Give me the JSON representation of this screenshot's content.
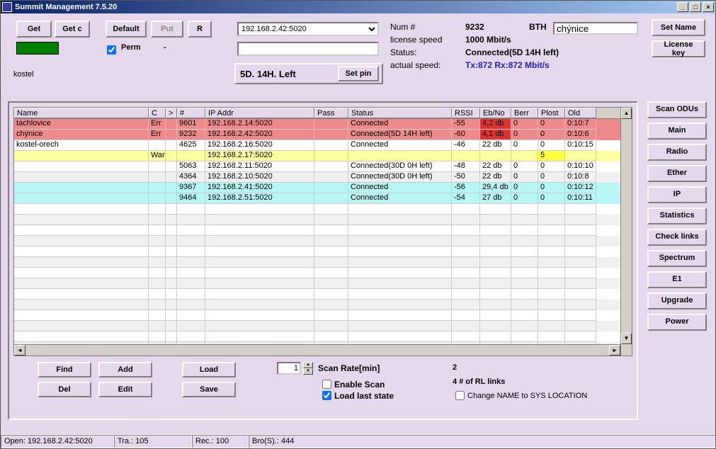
{
  "window": {
    "title": "Summit Management 7.5.20"
  },
  "toolbar": {
    "get": "Get",
    "getc": "Get c",
    "default": "Default",
    "put": "Put",
    "r": "R",
    "swatch_color": "#008000",
    "perm_label": "Perm",
    "perm_checked": true,
    "perm_dash": "-",
    "kostel": "kostel"
  },
  "ipbox": {
    "ip_selected": "192.168.2.42:5020",
    "pin_text": "5D.  14H. Left",
    "setpin": "Set pin"
  },
  "status": {
    "num_lbl": "Num #",
    "num_val": "9232",
    "bth": "BTH",
    "lic_lbl": "license speed",
    "lic_val": "1000 Mbit/s",
    "stat_lbl": "Status:",
    "stat_val": "Connected(5D 14H left)",
    "act_lbl": "actual speed:",
    "act_val": "Tx:872 Rx:872 Mbit/s"
  },
  "name_input": "chýnice",
  "top_right": {
    "setname": "Set Name",
    "lickey": "License key"
  },
  "columns": [
    "Name",
    "C",
    ">",
    "#",
    "IP Addr",
    "Pass",
    "Status",
    "RSSI",
    "Eb/No",
    "Berr",
    "Plost",
    "Old"
  ],
  "rows": [
    {
      "bg": "#ef8a8a",
      "cells": [
        "tachlovice",
        "Err",
        "",
        "9601",
        "192.168.2.14:5020",
        "",
        "Connected",
        "-55",
        "4,2 db",
        "0",
        "0",
        "0:10:7"
      ],
      "ebno_bg": "#e03030"
    },
    {
      "bg": "#ef8a8a",
      "cells": [
        "chýnice",
        "Err",
        "",
        "9232",
        "192.168.2.42:5020",
        "",
        "Connected(5D 14H left)",
        "-60",
        "4,1 db",
        "0",
        "0",
        "0:10:6"
      ],
      "ebno_bg": "#e03030"
    },
    {
      "bg": "#ffffff",
      "cells": [
        "kostel-orech",
        "",
        "",
        "4625",
        "192.168.2.16:5020",
        "",
        "Connected",
        "-46",
        "22 db",
        "0",
        "0",
        "0:10:15"
      ]
    },
    {
      "bg": "#ffffa0",
      "cells": [
        "",
        "Warn",
        "",
        "",
        "192.168.2.17:5020",
        "",
        "",
        "",
        "",
        "",
        "5",
        ""
      ],
      "plost_bg": "#ffff40"
    },
    {
      "bg": "#ffffff",
      "cells": [
        "",
        "",
        "",
        "5063",
        "192.168.2.11:5020",
        "",
        "Connected(30D 0H left)",
        "-48",
        "22 db",
        "0",
        "0",
        "0:10:10"
      ]
    },
    {
      "bg": "#f0f0f0",
      "cells": [
        "",
        "",
        "",
        "4364",
        "192.168.2.10:5020",
        "",
        "Connected(30D 0H left)",
        "-50",
        "22 db",
        "0",
        "0",
        "0:10:8"
      ]
    },
    {
      "bg": "#b8f5f5",
      "cells": [
        "",
        "",
        "",
        "9367",
        "192.168.2.41:5020",
        "",
        "Connected",
        "-56",
        "29,4 db",
        "0",
        "0",
        "0:10:12"
      ]
    },
    {
      "bg": "#b8f5f5",
      "cells": [
        "",
        "",
        "",
        "9464",
        "192.168.2.51:5020",
        "",
        "Connected",
        "-54",
        "27 db",
        "0",
        "0",
        "0:10:11"
      ]
    }
  ],
  "empty_rows": 14,
  "panel_btns": {
    "find": "Find",
    "add": "Add",
    "load": "Load",
    "del": "Del",
    "edit": "Edit",
    "save": "Save"
  },
  "scan": {
    "rate_val": "1",
    "rate_lbl": "Scan Rate[min]",
    "enable": "Enable Scan",
    "enable_checked": false,
    "loadlast": "Load last state",
    "loadlast_checked": true,
    "two": "2",
    "rl": "4 # of RL links",
    "chname": "Change NAME to  SYS LOCATION",
    "chname_checked": false
  },
  "side": [
    "Scan ODUs",
    "Main",
    "Radio",
    "Ether",
    "IP",
    "Statistics",
    "Check links",
    "Spectrum",
    "E1",
    "Upgrade",
    "Power"
  ],
  "statusbar": {
    "open": "Open: 192.168.2.42:5020",
    "tra": "Tra.: 105",
    "rec": "Rec.: 100",
    "bros": "Bro(S).: 444"
  }
}
